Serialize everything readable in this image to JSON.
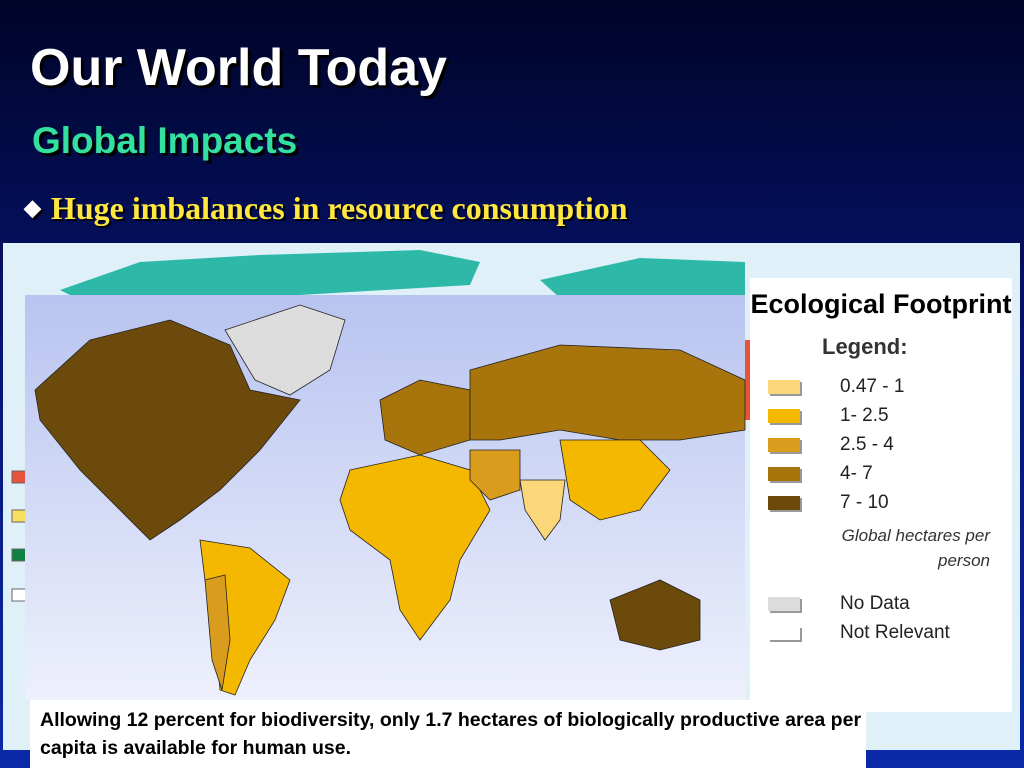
{
  "slide": {
    "title": "Our World Today",
    "subtitle": "Global Impacts",
    "bullet": "Huge imbalances in resource consumption",
    "legend_box": {
      "title": "Ecological Footprint",
      "heading": "Legend:",
      "items": [
        {
          "label": "0.47 - 1",
          "color": "#fcd77a"
        },
        {
          "label": "1- 2.5",
          "color": "#f5b800"
        },
        {
          "label": "2.5 - 4",
          "color": "#d99c1c"
        },
        {
          "label": "4- 7",
          "color": "#a8740c"
        },
        {
          "label": "7 - 10",
          "color": "#6b4a0c"
        }
      ],
      "unit_note": "Global hectares per person",
      "extra_items": [
        {
          "label": "No Data",
          "color": "#dcdcdc"
        },
        {
          "label": "Not Relevant",
          "color": "#ffffff"
        }
      ]
    },
    "caption": "Allowing 12 percent for biodiversity, only 1.7 hectares of biologically productive area per capita is available for human use."
  }
}
